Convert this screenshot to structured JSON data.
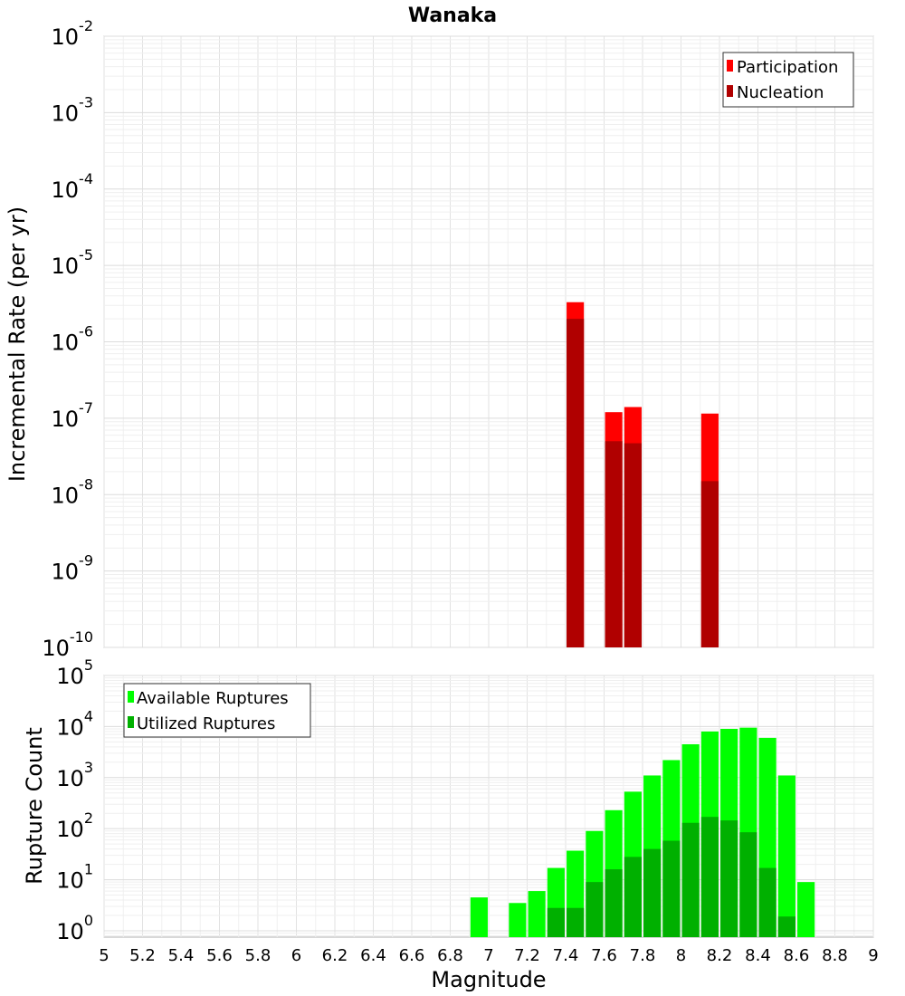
{
  "chart_data": [
    {
      "type": "bar",
      "title": "Wanaka",
      "xlabel": "",
      "ylabel": "Incremental Rate (per yr)",
      "yscale": "log",
      "xlim": [
        5,
        9
      ],
      "ylim": [
        1e-10,
        0.01
      ],
      "y_tick_exponents": [
        "-2",
        "-3",
        "-4",
        "-5",
        "-6",
        "-7",
        "-8",
        "-9",
        "-10"
      ],
      "legend": {
        "position": "top-right",
        "entries": [
          "Participation",
          "Nucleation"
        ]
      },
      "bar_width": 0.09,
      "series": [
        {
          "name": "Participation",
          "color": "#ff0000",
          "x": [
            7.45,
            7.65,
            7.75,
            8.15
          ],
          "values": [
            3.3e-06,
            1.2e-07,
            1.4e-07,
            1.15e-07
          ]
        },
        {
          "name": "Nucleation",
          "color": "#b00000",
          "x": [
            7.45,
            7.65,
            7.75,
            8.15
          ],
          "values": [
            2e-06,
            5e-08,
            4.7e-08,
            1.5e-08
          ]
        }
      ]
    },
    {
      "type": "bar",
      "title": "",
      "xlabel": "Magnitude",
      "ylabel": "Rupture Count",
      "yscale": "log",
      "xlim": [
        5,
        9
      ],
      "ylim": [
        0.75,
        100000
      ],
      "y_tick_exponents": [
        "5",
        "4",
        "3",
        "2",
        "1",
        "0"
      ],
      "x_ticks": [
        "5",
        "5.2",
        "5.4",
        "5.6",
        "5.8",
        "6",
        "6.2",
        "6.4",
        "6.6",
        "6.8",
        "7",
        "7.2",
        "7.4",
        "7.6",
        "7.8",
        "8",
        "8.2",
        "8.4",
        "8.6",
        "8.8",
        "9"
      ],
      "legend": {
        "position": "top-left",
        "entries": [
          "Available Ruptures",
          "Utilized Ruptures"
        ]
      },
      "bar_width": 0.09,
      "series": [
        {
          "name": "Available Ruptures",
          "color": "#00ff00",
          "x": [
            6.95,
            7.15,
            7.25,
            7.35,
            7.45,
            7.55,
            7.65,
            7.75,
            7.85,
            7.95,
            8.05,
            8.15,
            8.25,
            8.35,
            8.45,
            8.55,
            8.65
          ],
          "values": [
            4.5,
            3.5,
            6,
            17,
            37,
            90,
            230,
            530,
            1100,
            2200,
            4500,
            8000,
            9000,
            9500,
            6000,
            1100,
            9
          ]
        },
        {
          "name": "Utilized Ruptures",
          "color": "#00b000",
          "x": [
            7.35,
            7.45,
            7.55,
            7.65,
            7.75,
            7.85,
            7.95,
            8.05,
            8.15,
            8.25,
            8.35,
            8.45,
            8.55
          ],
          "values": [
            2.8,
            2.8,
            9,
            16,
            28,
            40,
            58,
            130,
            170,
            145,
            85,
            17,
            1.9
          ]
        }
      ]
    }
  ]
}
